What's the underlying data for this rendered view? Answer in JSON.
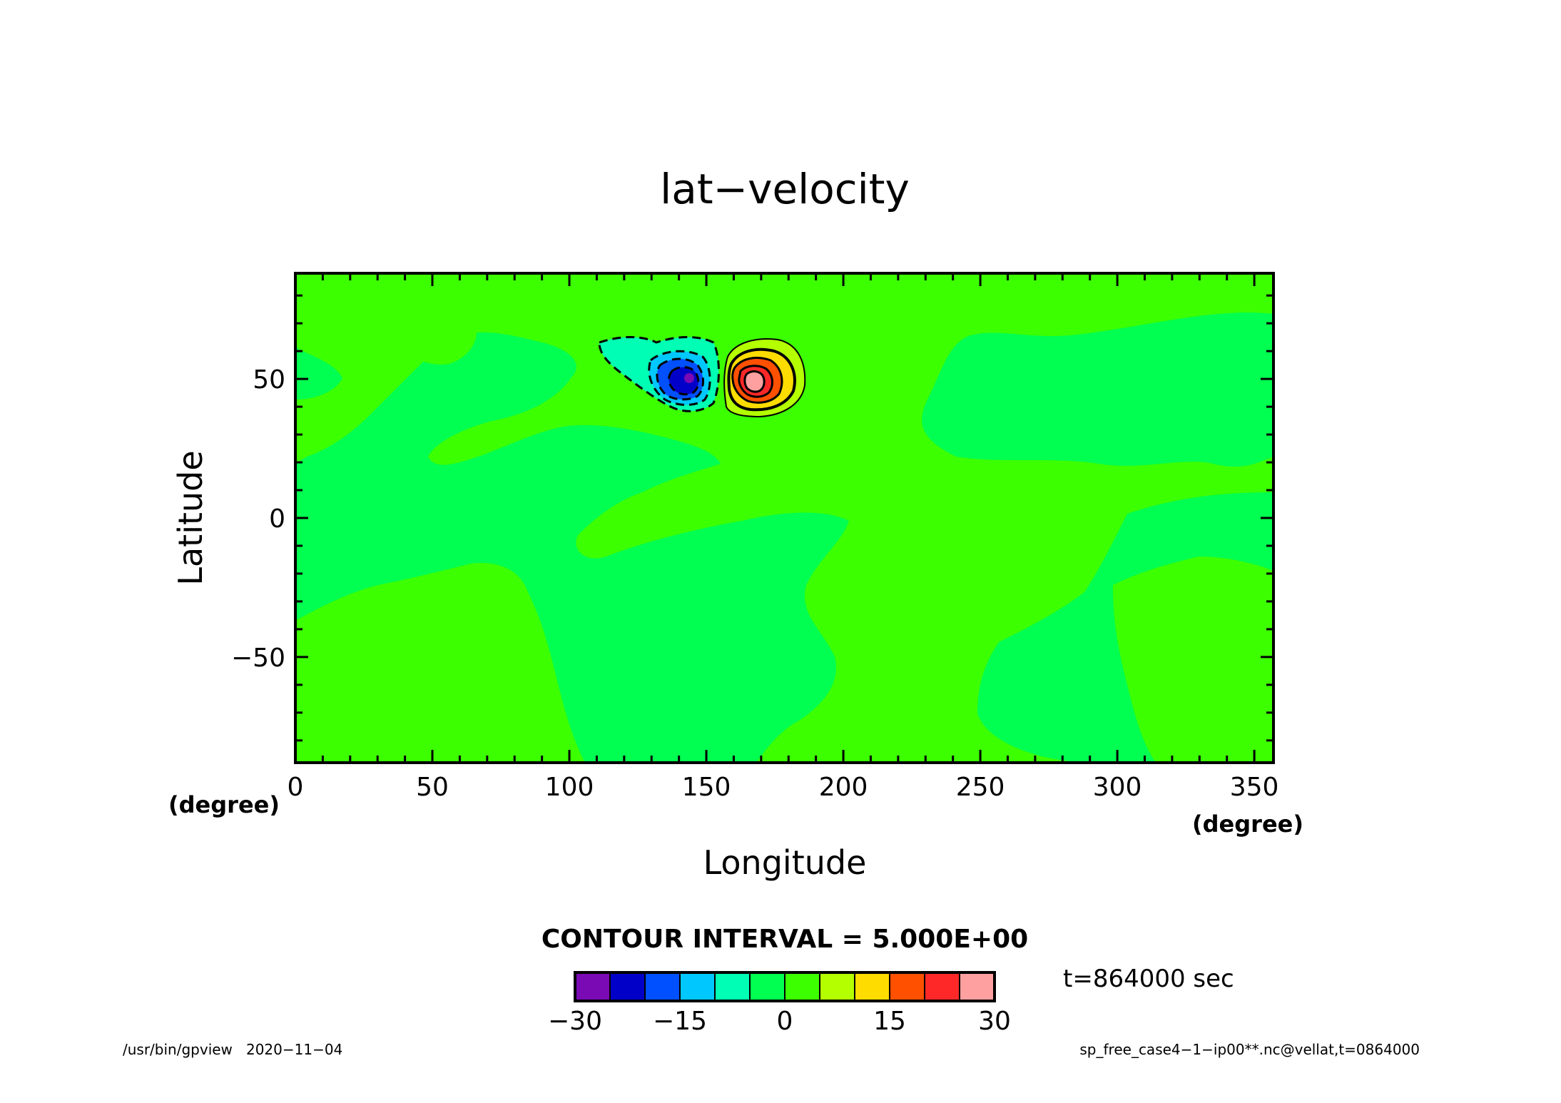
{
  "chart_data": {
    "type": "heatmap",
    "title": "lat−velocity",
    "xlabel": "Longitude",
    "ylabel": "Latitude",
    "x_unit": "(degree)",
    "y_unit": "(degree)",
    "xlim": [
      0,
      357
    ],
    "ylim": [
      -88,
      88
    ],
    "x_ticks": [
      0,
      50,
      100,
      150,
      200,
      250,
      300,
      350
    ],
    "y_ticks": [
      -50,
      0,
      50
    ],
    "x_tick_labels": [
      "0",
      "50",
      "100",
      "150",
      "200",
      "250",
      "300",
      "350"
    ],
    "y_tick_labels": [
      "−50",
      "0",
      "50"
    ],
    "contour_interval_text": "CONTOUR INTERVAL = 5.000E+00",
    "colorbar": {
      "levels": [
        -30,
        -25,
        -20,
        -15,
        -10,
        -5,
        0,
        5,
        10,
        15,
        20,
        25,
        30
      ],
      "colors": [
        "#7a0ab4",
        "#0000c8",
        "#0050ff",
        "#00c8ff",
        "#00ffb4",
        "#00ff50",
        "#3cff00",
        "#b4ff00",
        "#ffdc00",
        "#ff5000",
        "#ff2828",
        "#ffa0a0"
      ],
      "tick_labels": [
        "−30",
        "−15",
        "0",
        "15",
        "30"
      ],
      "tick_values": [
        -30,
        -15,
        0,
        15,
        30
      ]
    },
    "background_regions": [
      {
        "level_range": [
          -5,
          0
        ],
        "color": "#00ff50"
      },
      {
        "level_range": [
          0,
          5
        ],
        "color": "#3cff00"
      }
    ],
    "features": [
      {
        "name": "negative vortex",
        "lon": 144,
        "lat": 50,
        "min_value": -30,
        "contour_style": "dashed"
      },
      {
        "name": "positive vortex",
        "lon": 166,
        "lat": 50,
        "max_value": 30,
        "contour_style": "solid"
      }
    ],
    "time_text": "t=864000 sec"
  },
  "footer": {
    "left": "/usr/bin/gpview   2020−11−04",
    "right": "sp_free_case4−1−ip00**.nc@vellat,t=0864000"
  }
}
